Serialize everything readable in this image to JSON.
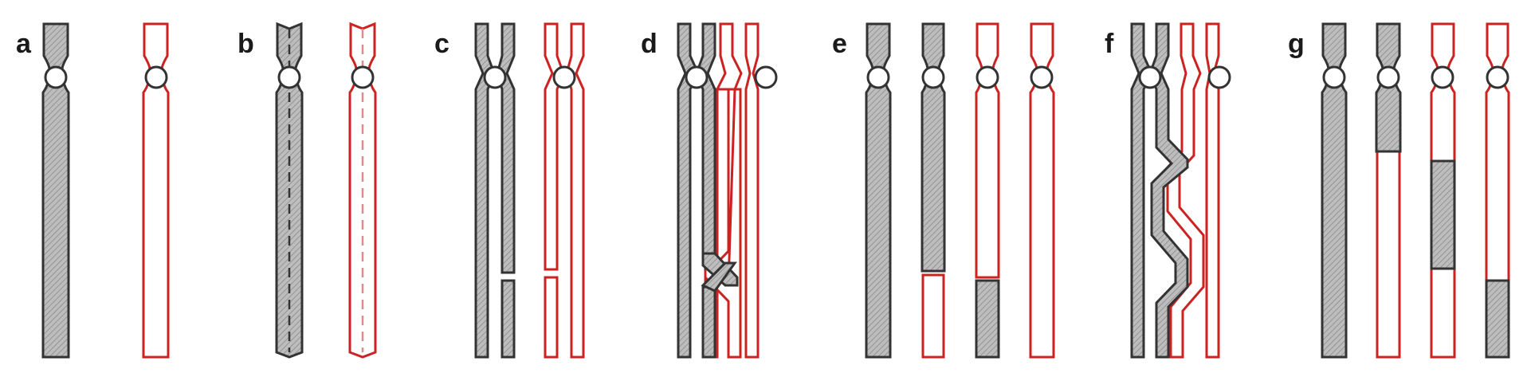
{
  "colors": {
    "gray_chromosome": "#333333",
    "red_chromosome": "#cc2222",
    "fill_gray": "#bdbdbd",
    "fill_white": "#ffffff"
  },
  "panels": [
    {
      "label": "a"
    },
    {
      "label": "b"
    },
    {
      "label": "c"
    },
    {
      "label": "d"
    },
    {
      "label": "e"
    },
    {
      "label": "f"
    },
    {
      "label": "g"
    }
  ]
}
